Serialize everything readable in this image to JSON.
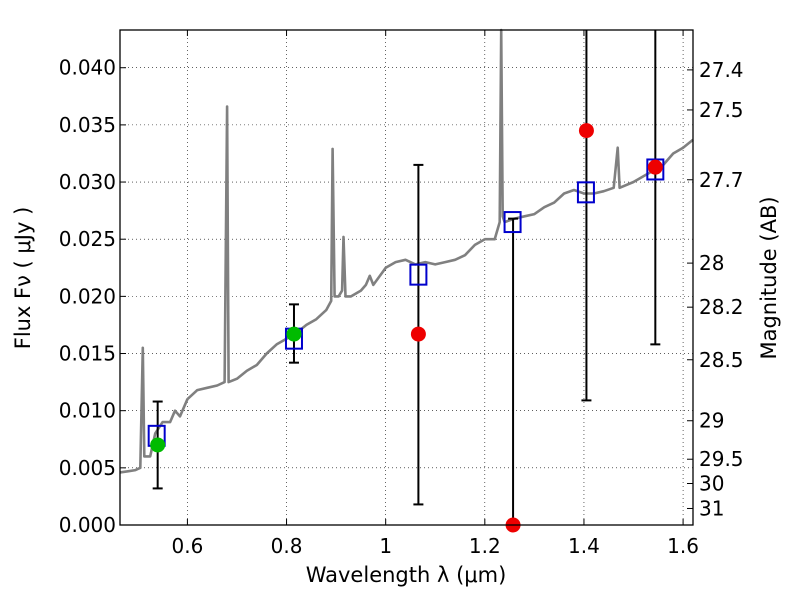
{
  "chart_data": {
    "type": "scatter",
    "title": "",
    "xlabel": "Wavelength  λ (μm)",
    "ylabel": "Flux  Fν  ( μJy )",
    "ylabel_right": "Magnitude (AB)",
    "xlim": [
      0.464,
      1.62
    ],
    "ylim": [
      0.0,
      0.0433
    ],
    "grid": true,
    "x_ticks": [
      0.6,
      0.8,
      1.0,
      1.2,
      1.4,
      1.6
    ],
    "x_tick_labels": [
      "0.6",
      "0.8",
      "1",
      "1.2",
      "1.4",
      "1.6"
    ],
    "y_ticks": [
      0.0,
      0.005,
      0.01,
      0.015,
      0.02,
      0.025,
      0.03,
      0.035,
      0.04
    ],
    "y_tick_labels": [
      "0.000",
      "0.005",
      "0.010",
      "0.015",
      "0.020",
      "0.025",
      "0.030",
      "0.035",
      "0.040"
    ],
    "right_ticks": [
      27.4,
      27.5,
      27.7,
      28,
      28.2,
      28.5,
      29,
      29.5,
      30,
      31
    ],
    "right_tick_labels": [
      "27.4",
      "27.5",
      "27.7",
      "28",
      "28.2",
      "28.5",
      "29",
      "29.5",
      "30",
      "31"
    ],
    "series": [
      {
        "name": "model spectrum",
        "kind": "line",
        "color": "#808080",
        "points": [
          [
            0.464,
            0.0046
          ],
          [
            0.48,
            0.0047
          ],
          [
            0.495,
            0.0048
          ],
          [
            0.505,
            0.005
          ],
          [
            0.51,
            0.0155
          ],
          [
            0.513,
            0.006
          ],
          [
            0.525,
            0.006
          ],
          [
            0.535,
            0.008
          ],
          [
            0.55,
            0.009
          ],
          [
            0.565,
            0.009
          ],
          [
            0.575,
            0.01
          ],
          [
            0.585,
            0.0095
          ],
          [
            0.6,
            0.011
          ],
          [
            0.62,
            0.0118
          ],
          [
            0.64,
            0.012
          ],
          [
            0.66,
            0.0122
          ],
          [
            0.675,
            0.0125
          ],
          [
            0.68,
            0.0366
          ],
          [
            0.683,
            0.0125
          ],
          [
            0.7,
            0.0128
          ],
          [
            0.72,
            0.0135
          ],
          [
            0.74,
            0.014
          ],
          [
            0.76,
            0.015
          ],
          [
            0.78,
            0.0158
          ],
          [
            0.8,
            0.0163
          ],
          [
            0.82,
            0.0168
          ],
          [
            0.84,
            0.0175
          ],
          [
            0.86,
            0.018
          ],
          [
            0.88,
            0.0188
          ],
          [
            0.89,
            0.0196
          ],
          [
            0.893,
            0.0329
          ],
          [
            0.897,
            0.02
          ],
          [
            0.905,
            0.02
          ],
          [
            0.912,
            0.0205
          ],
          [
            0.915,
            0.0252
          ],
          [
            0.919,
            0.02
          ],
          [
            0.93,
            0.02
          ],
          [
            0.95,
            0.0205
          ],
          [
            0.96,
            0.021
          ],
          [
            0.968,
            0.0218
          ],
          [
            0.975,
            0.021
          ],
          [
            1.0,
            0.0225
          ],
          [
            1.02,
            0.023
          ],
          [
            1.04,
            0.0232
          ],
          [
            1.06,
            0.0228
          ],
          [
            1.08,
            0.023
          ],
          [
            1.1,
            0.0228
          ],
          [
            1.12,
            0.023
          ],
          [
            1.14,
            0.0232
          ],
          [
            1.16,
            0.0236
          ],
          [
            1.18,
            0.0245
          ],
          [
            1.2,
            0.025
          ],
          [
            1.22,
            0.025
          ],
          [
            1.23,
            0.0265
          ],
          [
            1.233,
            0.0433
          ],
          [
            1.236,
            0.027
          ],
          [
            1.24,
            0.0265
          ],
          [
            1.26,
            0.0268
          ],
          [
            1.28,
            0.027
          ],
          [
            1.3,
            0.0272
          ],
          [
            1.32,
            0.0278
          ],
          [
            1.34,
            0.0282
          ],
          [
            1.36,
            0.029
          ],
          [
            1.38,
            0.0293
          ],
          [
            1.4,
            0.029
          ],
          [
            1.42,
            0.029
          ],
          [
            1.44,
            0.0292
          ],
          [
            1.46,
            0.0295
          ],
          [
            1.468,
            0.033
          ],
          [
            1.472,
            0.0295
          ],
          [
            1.5,
            0.03
          ],
          [
            1.52,
            0.0305
          ],
          [
            1.54,
            0.031
          ],
          [
            1.56,
            0.0315
          ],
          [
            1.58,
            0.0325
          ],
          [
            1.6,
            0.033
          ],
          [
            1.62,
            0.0337
          ]
        ]
      },
      {
        "name": "model photometry",
        "kind": "open-square",
        "color": "#0000cc",
        "points": [
          [
            0.538,
            0.0078
          ],
          [
            0.815,
            0.0163
          ],
          [
            1.066,
            0.0219
          ],
          [
            1.256,
            0.0265
          ],
          [
            1.404,
            0.0291
          ],
          [
            1.544,
            0.0311
          ]
        ]
      },
      {
        "name": "observed detections",
        "kind": "filled-circle",
        "color": "#00bb00",
        "points": [
          [
            0.54,
            0.007
          ],
          [
            0.815,
            0.0167
          ]
        ]
      },
      {
        "name": "observed non-detections",
        "kind": "filled-circle",
        "color": "#ee0000",
        "points": [
          [
            1.066,
            0.0167
          ],
          [
            1.257,
            0.0
          ],
          [
            1.405,
            0.0345
          ],
          [
            1.544,
            0.0313
          ]
        ]
      }
    ],
    "error_bars": [
      {
        "x": 0.54,
        "low": 0.0032,
        "high": 0.0108
      },
      {
        "x": 0.815,
        "low": 0.0142,
        "high": 0.0193
      },
      {
        "x": 1.066,
        "low": 0.0018,
        "high": 0.0315
      },
      {
        "x": 1.257,
        "low": 0.0,
        "high": 0.0268
      },
      {
        "x": 1.405,
        "low": 0.0109,
        "high": 0.0433
      },
      {
        "x": 1.544,
        "low": 0.0158,
        "high": 0.0433
      }
    ]
  }
}
